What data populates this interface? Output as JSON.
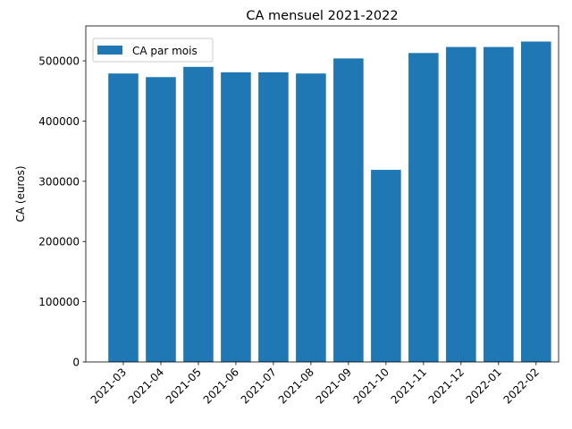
{
  "chart_data": {
    "type": "bar",
    "title": "CA mensuel 2021-2022",
    "xlabel": "",
    "ylabel": "CA (euros)",
    "categories": [
      "2021-03",
      "2021-04",
      "2021-05",
      "2021-06",
      "2021-07",
      "2021-08",
      "2021-09",
      "2021-10",
      "2021-11",
      "2021-12",
      "2022-01",
      "2022-02"
    ],
    "series": [
      {
        "name": "CA par mois",
        "color": "#1f77b4",
        "values": [
          479000,
          473000,
          490000,
          481000,
          481000,
          479000,
          504000,
          319000,
          513000,
          523000,
          523000,
          532000
        ]
      }
    ],
    "ylim": [
      0,
      558000
    ],
    "yticks": [
      0,
      100000,
      200000,
      300000,
      400000,
      500000
    ],
    "ytick_labels": [
      "0",
      "100000",
      "200000",
      "300000",
      "400000",
      "500000"
    ],
    "xtick_rotation_deg": 45,
    "grid": false,
    "legend_position": "upper-left"
  }
}
